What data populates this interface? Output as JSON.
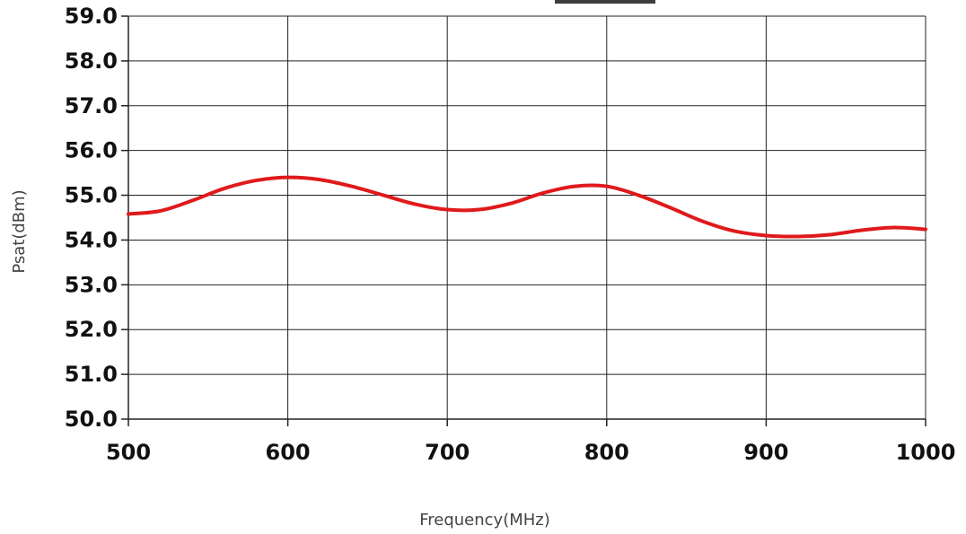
{
  "chart_data": {
    "type": "line",
    "title": "",
    "xlabel": "Frequency(MHz)",
    "ylabel": "Psat(dBm)",
    "xlim": [
      500,
      1000
    ],
    "ylim": [
      50.0,
      59.0
    ],
    "x_ticks": [
      "500",
      "600",
      "700",
      "800",
      "900",
      "1000"
    ],
    "y_ticks": [
      "50.0",
      "51.0",
      "52.0",
      "53.0",
      "54.0",
      "55.0",
      "56.0",
      "57.0",
      "58.0",
      "59.0"
    ],
    "grid": true,
    "legend": "none",
    "series": [
      {
        "color": "#e0191b",
        "x": [
          500,
          520,
          540,
          560,
          580,
          600,
          620,
          640,
          660,
          680,
          700,
          720,
          740,
          760,
          780,
          800,
          820,
          840,
          860,
          880,
          900,
          920,
          940,
          960,
          980,
          1000
        ],
        "y": [
          54.58,
          54.65,
          54.88,
          55.15,
          55.33,
          55.4,
          55.35,
          55.2,
          55.0,
          54.8,
          54.68,
          54.68,
          54.82,
          55.05,
          55.2,
          55.2,
          55.0,
          54.72,
          54.42,
          54.2,
          54.1,
          54.08,
          54.12,
          54.22,
          54.28,
          54.24
        ]
      }
    ]
  }
}
